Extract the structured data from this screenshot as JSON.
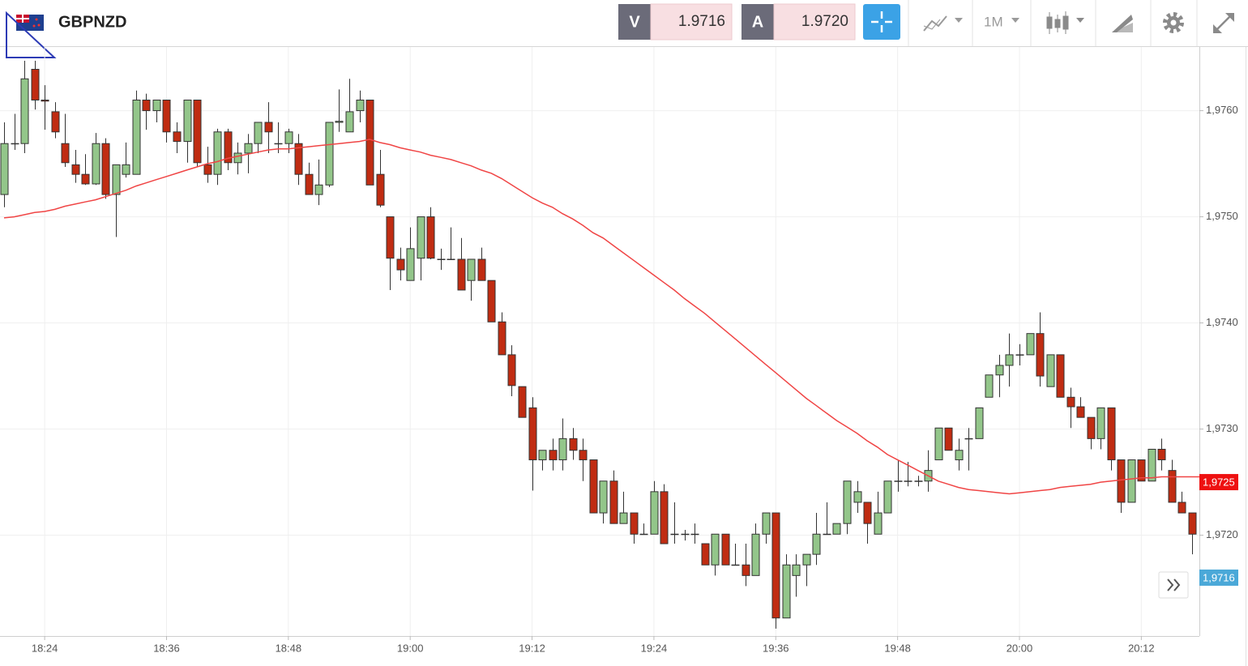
{
  "toolbar": {
    "symbol": "GBPNZD",
    "sell_label": "V",
    "sell_price": "1.9716",
    "buy_label": "A",
    "buy_price": "1.9720",
    "timeframe": "1M"
  },
  "chart_data": {
    "type": "candlestick",
    "x": [
      "18:20",
      "18:21",
      "18:22",
      "18:23",
      "18:24",
      "18:25",
      "18:26",
      "18:27",
      "18:28",
      "18:29",
      "18:30",
      "18:31",
      "18:32",
      "18:33",
      "18:34",
      "18:35",
      "18:36",
      "18:37",
      "18:38",
      "18:39",
      "18:40",
      "18:41",
      "18:42",
      "18:43",
      "18:44",
      "18:45",
      "18:46",
      "18:47",
      "18:48",
      "18:49",
      "18:50",
      "18:51",
      "18:52",
      "18:53",
      "18:54",
      "18:55",
      "18:56",
      "18:57",
      "18:58",
      "18:59",
      "19:00",
      "19:01",
      "19:02",
      "19:03",
      "19:04",
      "19:05",
      "19:06",
      "19:07",
      "19:08",
      "19:09",
      "19:10",
      "19:11",
      "19:12",
      "19:13",
      "19:14",
      "19:15",
      "19:16",
      "19:17",
      "19:18",
      "19:19",
      "19:20",
      "19:21",
      "19:22",
      "19:23",
      "19:24",
      "19:25",
      "19:26",
      "19:27",
      "19:28",
      "19:29",
      "19:30",
      "19:31",
      "19:32",
      "19:33",
      "19:34",
      "19:35",
      "19:36",
      "19:37",
      "19:38",
      "19:39",
      "19:40",
      "19:41",
      "19:42",
      "19:43",
      "19:44",
      "19:45",
      "19:46",
      "19:47",
      "19:48",
      "19:49",
      "19:50",
      "19:51",
      "19:52",
      "19:53",
      "19:54",
      "19:55",
      "19:56",
      "19:57",
      "19:58",
      "19:59",
      "20:00",
      "20:01",
      "20:02",
      "20:03",
      "20:04",
      "20:05",
      "20:06",
      "20:07",
      "20:08",
      "20:09",
      "20:10",
      "20:11",
      "20:12",
      "20:13",
      "20:14",
      "20:15",
      "20:16",
      "20:17"
    ],
    "open": [
      1.97521,
      1.97569,
      1.97569,
      1.97639,
      1.9761,
      1.97599,
      1.97569,
      1.97549,
      1.9754,
      1.97531,
      1.97569,
      1.97521,
      1.9754,
      1.9754,
      1.9761,
      1.976,
      1.9761,
      1.9758,
      1.97571,
      1.9761,
      1.97549,
      1.9754,
      1.9758,
      1.97551,
      1.9756,
      1.97569,
      1.97589,
      1.97569,
      1.97569,
      1.97569,
      1.9754,
      1.97521,
      1.9753,
      1.97589,
      1.9758,
      1.976,
      1.9761,
      1.9754,
      1.975,
      1.9746,
      1.9744,
      1.97461,
      1.975,
      1.9746,
      1.9746,
      1.9746,
      1.9744,
      1.9746,
      1.9744,
      1.97401,
      1.9737,
      1.9734,
      1.9732,
      1.97271,
      1.9728,
      1.97271,
      1.97291,
      1.9728,
      1.97271,
      1.97221,
      1.97251,
      1.97211,
      1.97221,
      1.97201,
      1.97201,
      1.97241,
      1.97201,
      1.97201,
      1.97201,
      1.97192,
      1.97172,
      1.97201,
      1.97172,
      1.97172,
      1.97162,
      1.97201,
      1.97221,
      1.97122,
      1.97162,
      1.97172,
      1.97182,
      1.97201,
      1.97201,
      1.97211,
      1.97231,
      1.97231,
      1.97201,
      1.97221,
      1.97251,
      1.97251,
      1.97251,
      1.97251,
      1.97271,
      1.97301,
      1.97271,
      1.97291,
      1.97291,
      1.9733,
      1.97351,
      1.9736,
      1.9737,
      1.9737,
      1.9739,
      1.9734,
      1.9737,
      1.9733,
      1.97321,
      1.97311,
      1.97291,
      1.9732,
      1.97271,
      1.97231,
      1.97271,
      1.97251,
      1.97281,
      1.97261,
      1.97231,
      1.97221
    ],
    "high": [
      1.97589,
      1.97597,
      1.97647,
      1.97647,
      1.97624,
      1.97608,
      1.97597,
      1.97563,
      1.97559,
      1.97579,
      1.97574,
      1.97549,
      1.9757,
      1.97619,
      1.97616,
      1.9761,
      1.9761,
      1.97589,
      1.9761,
      1.9761,
      1.97566,
      1.97583,
      1.97583,
      1.9757,
      1.97578,
      1.97589,
      1.97608,
      1.97589,
      1.97583,
      1.97578,
      1.97551,
      1.97554,
      1.97589,
      1.9762,
      1.9763,
      1.97619,
      1.9761,
      1.97563,
      1.975,
      1.97471,
      1.9749,
      1.975,
      1.97509,
      1.9747,
      1.9749,
      1.9748,
      1.9746,
      1.97471,
      1.9744,
      1.9741,
      1.97379,
      1.9734,
      1.9733,
      1.9728,
      1.97291,
      1.9731,
      1.97301,
      1.97291,
      1.97271,
      1.97251,
      1.97261,
      1.97241,
      1.97221,
      1.97211,
      1.97251,
      1.97248,
      1.97231,
      1.97205,
      1.97211,
      1.97192,
      1.97201,
      1.97201,
      1.97192,
      1.97192,
      1.97211,
      1.97221,
      1.97221,
      1.97182,
      1.97182,
      1.97182,
      1.97221,
      1.97231,
      1.97211,
      1.97251,
      1.97251,
      1.97231,
      1.97241,
      1.97251,
      1.97271,
      1.97269,
      1.97256,
      1.9728,
      1.97301,
      1.97301,
      1.97291,
      1.97301,
      1.9732,
      1.97351,
      1.9737,
      1.9739,
      1.9738,
      1.9739,
      1.9741,
      1.9737,
      1.9737,
      1.97339,
      1.9733,
      1.97311,
      1.9732,
      1.9732,
      1.97271,
      1.97271,
      1.97271,
      1.97281,
      1.97291,
      1.97271,
      1.97241,
      1.97221
    ],
    "low": [
      1.97509,
      1.97563,
      1.9756,
      1.97601,
      1.97582,
      1.97574,
      1.97547,
      1.97532,
      1.9753,
      1.9753,
      1.97517,
      1.97481,
      1.97537,
      1.9754,
      1.97582,
      1.97589,
      1.9757,
      1.9756,
      1.97551,
      1.97547,
      1.97532,
      1.9753,
      1.97544,
      1.9754,
      1.97541,
      1.9756,
      1.9756,
      1.9756,
      1.9756,
      1.9753,
      1.97521,
      1.97511,
      1.97528,
      1.9758,
      1.9758,
      1.97589,
      1.9753,
      1.97509,
      1.97431,
      1.9744,
      1.9744,
      1.9744,
      1.9746,
      1.9745,
      1.9746,
      1.97431,
      1.97421,
      1.9744,
      1.97401,
      1.9737,
      1.97331,
      1.97311,
      1.97242,
      1.97261,
      1.97261,
      1.97261,
      1.97271,
      1.97251,
      1.97221,
      1.97211,
      1.97211,
      1.97211,
      1.97192,
      1.97201,
      1.97201,
      1.97192,
      1.97192,
      1.97195,
      1.97192,
      1.97172,
      1.97162,
      1.97172,
      1.97172,
      1.97152,
      1.97162,
      1.97192,
      1.97112,
      1.97122,
      1.97142,
      1.97152,
      1.97172,
      1.97201,
      1.97201,
      1.97201,
      1.97221,
      1.97192,
      1.97201,
      1.97221,
      1.97241,
      1.97246,
      1.97246,
      1.97241,
      1.97271,
      1.9728,
      1.97261,
      1.97261,
      1.97291,
      1.9733,
      1.9733,
      1.9734,
      1.9736,
      1.9737,
      1.9734,
      1.9734,
      1.9733,
      1.97301,
      1.97311,
      1.97281,
      1.97281,
      1.97261,
      1.97221,
      1.97231,
      1.97251,
      1.97251,
      1.97261,
      1.97231,
      1.97221,
      1.97182
    ],
    "close": [
      1.97569,
      1.97569,
      1.9763,
      1.9761,
      1.97609,
      1.9758,
      1.97551,
      1.9754,
      1.97531,
      1.97569,
      1.97521,
      1.97549,
      1.97549,
      1.9761,
      1.976,
      1.9761,
      1.9758,
      1.97571,
      1.9761,
      1.97551,
      1.9754,
      1.9758,
      1.97551,
      1.9756,
      1.97569,
      1.97589,
      1.9758,
      1.97569,
      1.9758,
      1.9754,
      1.97521,
      1.9753,
      1.97589,
      1.9759,
      1.97599,
      1.9761,
      1.9753,
      1.97511,
      1.97461,
      1.9745,
      1.9747,
      1.975,
      1.97461,
      1.9746,
      1.9746,
      1.97431,
      1.9746,
      1.9744,
      1.97401,
      1.9737,
      1.97341,
      1.97311,
      1.97271,
      1.9728,
      1.97271,
      1.97291,
      1.9728,
      1.97271,
      1.97221,
      1.97251,
      1.97211,
      1.97221,
      1.97201,
      1.97201,
      1.97241,
      1.97192,
      1.97201,
      1.97201,
      1.97201,
      1.97172,
      1.97201,
      1.97172,
      1.97172,
      1.97162,
      1.97201,
      1.97221,
      1.97122,
      1.97172,
      1.97172,
      1.97182,
      1.97201,
      1.97201,
      1.97211,
      1.97251,
      1.97241,
      1.97211,
      1.97221,
      1.97251,
      1.97251,
      1.97251,
      1.97251,
      1.97261,
      1.97301,
      1.9728,
      1.9728,
      1.97291,
      1.9732,
      1.97351,
      1.9736,
      1.9737,
      1.9737,
      1.9739,
      1.9735,
      1.9737,
      1.9733,
      1.97321,
      1.97311,
      1.97291,
      1.9732,
      1.97271,
      1.97231,
      1.97271,
      1.97251,
      1.97281,
      1.97271,
      1.97231,
      1.97221,
      1.97201
    ],
    "up_color": "#93c68a",
    "down_color": "#c02c12",
    "ma": {
      "color": "#f04545",
      "values": [
        1.97499,
        1.975,
        1.97502,
        1.97504,
        1.97505,
        1.97507,
        1.9751,
        1.97512,
        1.97514,
        1.97516,
        1.97519,
        1.97522,
        1.97525,
        1.97529,
        1.97532,
        1.97535,
        1.97538,
        1.97541,
        1.97544,
        1.97547,
        1.9755,
        1.97552,
        1.97555,
        1.97557,
        1.97559,
        1.97561,
        1.97563,
        1.97564,
        1.97564,
        1.97565,
        1.97566,
        1.97567,
        1.97568,
        1.97569,
        1.9757,
        1.97571,
        1.97573,
        1.9757,
        1.97568,
        1.97565,
        1.97563,
        1.97561,
        1.97558,
        1.97556,
        1.97554,
        1.97551,
        1.97548,
        1.97544,
        1.97541,
        1.97536,
        1.9753,
        1.97524,
        1.97518,
        1.97513,
        1.97509,
        1.97503,
        1.97498,
        1.97492,
        1.97485,
        1.9748,
        1.97473,
        1.97466,
        1.97459,
        1.97452,
        1.97445,
        1.97438,
        1.97431,
        1.97423,
        1.97416,
        1.97409,
        1.97401,
        1.97393,
        1.97385,
        1.97377,
        1.97369,
        1.97361,
        1.97353,
        1.97345,
        1.97337,
        1.97329,
        1.97322,
        1.97315,
        1.97308,
        1.97302,
        1.97296,
        1.97289,
        1.97283,
        1.97276,
        1.97271,
        1.97266,
        1.97261,
        1.97256,
        1.97251,
        1.97248,
        1.97245,
        1.97243,
        1.97242,
        1.97241,
        1.9724,
        1.97239,
        1.9724,
        1.97241,
        1.97242,
        1.97243,
        1.97245,
        1.97246,
        1.97247,
        1.97248,
        1.9725,
        1.97251,
        1.97252,
        1.97253,
        1.97254,
        1.97254,
        1.97255,
        1.97255,
        1.97255,
        1.97255
      ]
    },
    "ylim": [
      1.97105,
      1.9766
    ],
    "yticks": [
      {
        "value": 1.972,
        "label": "1,9720"
      },
      {
        "value": 1.973,
        "label": "1,9730"
      },
      {
        "value": 1.974,
        "label": "1,9740"
      },
      {
        "value": 1.975,
        "label": "1,9750"
      },
      {
        "value": 1.976,
        "label": "1,9760"
      }
    ],
    "xticks": [
      "18:24",
      "18:36",
      "18:48",
      "19:00",
      "19:12",
      "19:24",
      "19:36",
      "19:48",
      "20:00",
      "20:12"
    ],
    "price_tags": [
      {
        "value": 1.9725,
        "label": "1,9725",
        "color": "#ee1111"
      },
      {
        "value": 1.9716,
        "label": "1,9716",
        "color": "#4aa8d8"
      }
    ],
    "grid": true
  }
}
